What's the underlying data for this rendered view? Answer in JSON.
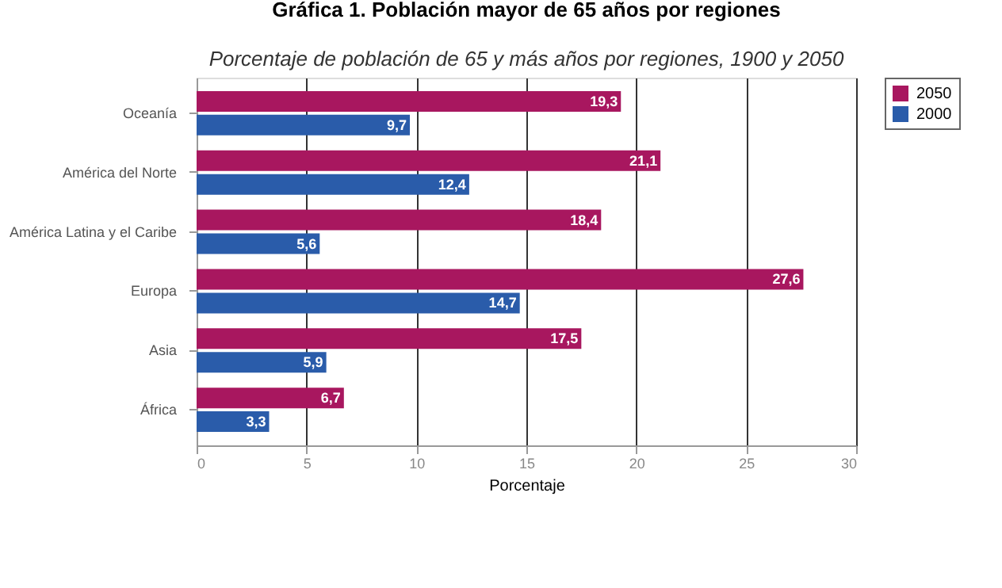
{
  "chart_data": {
    "type": "bar",
    "orientation": "horizontal",
    "title": "Gráfica 1. Población mayor de 65 años por regiones",
    "subtitle": "Porcentaje de población de 65 y más años por regiones, 1900 y 2050",
    "xlabel": "Porcentaje",
    "categories": [
      "Oceanía",
      "América del Norte",
      "América Latina y el Caribe",
      "Europa",
      "Asia",
      "África"
    ],
    "series": [
      {
        "name": "2050",
        "color": "#a8175f",
        "values": [
          19.3,
          21.1,
          18.4,
          27.6,
          17.5,
          6.7
        ],
        "value_labels": [
          "19,3",
          "21,1",
          "18,4",
          "27,6",
          "17,5",
          "6,7"
        ]
      },
      {
        "name": "2000",
        "color": "#2a5caa",
        "values": [
          9.7,
          12.4,
          5.6,
          14.7,
          5.9,
          3.3
        ],
        "value_labels": [
          "9,7",
          "12,4",
          "5,6",
          "14,7",
          "5,9",
          "3,3"
        ]
      }
    ],
    "xlim": [
      0,
      30
    ],
    "xticks": [
      0,
      5,
      10,
      15,
      20,
      25,
      30
    ],
    "grid": "x",
    "legend": "right"
  }
}
